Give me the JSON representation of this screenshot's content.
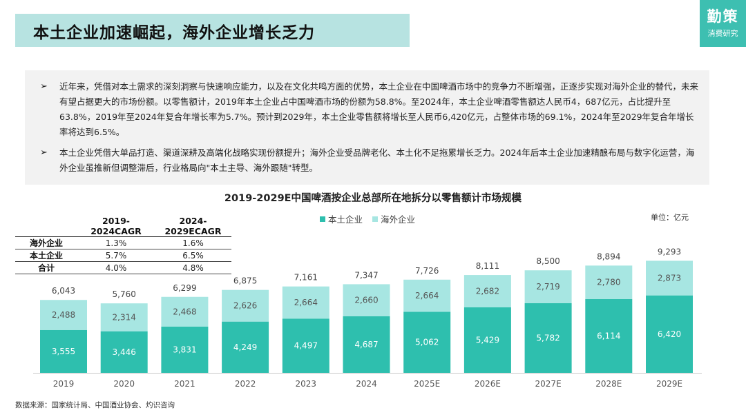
{
  "page": {
    "title": "本土企业加速崛起，海外企业增长乏力",
    "brand_name": "勤策",
    "brand_sub": "消费研究",
    "source": "数据来源：国家统计局、中国酒业协会、灼识咨询"
  },
  "summary": {
    "bullet_symbol": "➢",
    "points": [
      "近年来，凭借对本土需求的深刻洞察与快速响应能力，以及在文化共鸣方面的优势，本土企业在中国啤酒市场中的竞争力不断增强，正逐步实现对海外企业的替代，未来有望占据更大的市场份额。以零售额计，2019年本土企业占中国啤酒市场的份额为58.8%。至2024年，本土企业啤酒零售额达人民币4，687亿元，占比提升至63.8%，2019年至2024年复合年增长率为5.7%。预计到2029年，本土企业零售额将增长至人民币6,420亿元，占整体市场的69.1%，2024年至2029年复合年增长率将达到6.5%。",
      "本土企业凭借大单品打造、渠道深耕及高端化战略实现份额提升；海外企业受品牌老化、本土化不足拖累增长乏力。2024年后本土企业加速精酿布局与数字化运营，海外企业虽推新但调整滞后，行业格局向\"本土主导、海外跟随\"转型。"
    ]
  },
  "cagr_table": {
    "headers": [
      "",
      "2019-2024CAGR",
      "2024-2029ECAGR"
    ],
    "rows": [
      [
        "海外企业",
        "1.3%",
        "1.6%"
      ],
      [
        "本土企业",
        "5.7%",
        "6.5%"
      ],
      [
        "合计",
        "4.0%",
        "4.8%"
      ]
    ]
  },
  "chart_data": {
    "type": "bar",
    "stacked": true,
    "title": "2019-2029E中国啤酒按企业总部所在地拆分以零售额计市场规模",
    "unit_label": "单位：亿元",
    "categories": [
      "2019",
      "2020",
      "2021",
      "2022",
      "2023",
      "2024",
      "2025E",
      "2026E",
      "2027E",
      "2028E",
      "2029E"
    ],
    "series": [
      {
        "name": "本土企业",
        "color": "#2ebfae",
        "values": [
          3555,
          3446,
          3831,
          4249,
          4497,
          4687,
          5062,
          5429,
          5782,
          6114,
          6420
        ]
      },
      {
        "name": "海外企业",
        "color": "#a7e6e2",
        "values": [
          2488,
          2314,
          2468,
          2626,
          2664,
          2660,
          2664,
          2682,
          2719,
          2780,
          2873
        ]
      }
    ],
    "totals": [
      6043,
      5760,
      6299,
      6875,
      7161,
      7347,
      7726,
      8111,
      8500,
      8894,
      9293
    ],
    "value_labels": {
      "local": [
        "3,555",
        "3,446",
        "3,831",
        "4,249",
        "4,497",
        "4,687",
        "5,062",
        "5,429",
        "5,782",
        "6,114",
        "6,420"
      ],
      "foreign": [
        "2,488",
        "2,314",
        "2,468",
        "2,626",
        "2,664",
        "2,660",
        "2,664",
        "2,682",
        "2,719",
        "2,780",
        "2,873"
      ],
      "totals": [
        "6,043",
        "5,760",
        "6,299",
        "6,875",
        "7,161",
        "7,347",
        "7,726",
        "8,111",
        "8,500",
        "8,894",
        "9,293"
      ]
    },
    "ylim": [
      0,
      10000
    ],
    "xlabel": "",
    "ylabel": "",
    "grid": false,
    "legend": "top-center"
  }
}
